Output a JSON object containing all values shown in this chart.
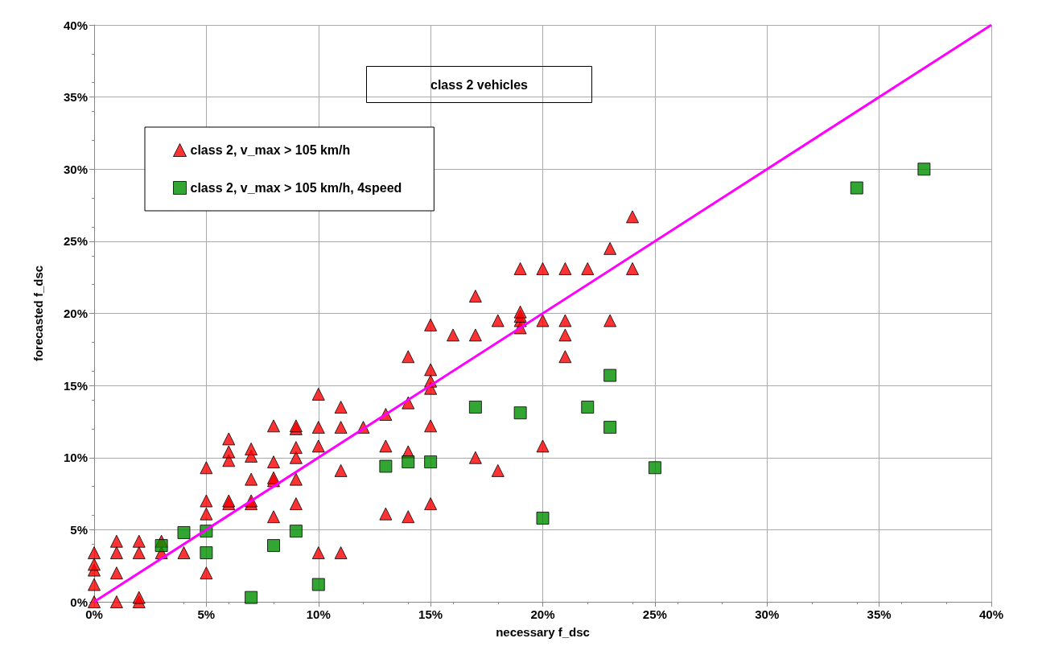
{
  "chart_data": {
    "type": "scatter",
    "title": "class 2 vehicles",
    "xlabel": "necessary f_dsc",
    "ylabel": "forecasted f_dsc",
    "xlim": [
      0,
      40
    ],
    "ylim": [
      0,
      40
    ],
    "xticks": [
      {
        "value": 0,
        "label": "0%"
      },
      {
        "value": 5,
        "label": "5%"
      },
      {
        "value": 10,
        "label": "10%"
      },
      {
        "value": 15,
        "label": "15%"
      },
      {
        "value": 20,
        "label": "20%"
      },
      {
        "value": 25,
        "label": "25%"
      },
      {
        "value": 30,
        "label": "30%"
      },
      {
        "value": 35,
        "label": "35%"
      },
      {
        "value": 40,
        "label": "40%"
      }
    ],
    "yticks": [
      {
        "value": 0,
        "label": "0%"
      },
      {
        "value": 5,
        "label": "5%"
      },
      {
        "value": 10,
        "label": "10%"
      },
      {
        "value": 15,
        "label": "15%"
      },
      {
        "value": 20,
        "label": "20%"
      },
      {
        "value": 25,
        "label": "25%"
      },
      {
        "value": 30,
        "label": "30%"
      },
      {
        "value": 35,
        "label": "35%"
      },
      {
        "value": 40,
        "label": "40%"
      }
    ],
    "grid": true,
    "legend": "top left",
    "series": [
      {
        "name": "class 2, v_max > 105 km/h",
        "color": "#ff0000",
        "marker": "triangle",
        "x": [
          0,
          0,
          0,
          0,
          0,
          1,
          1,
          1,
          1,
          2,
          2,
          2,
          2,
          3,
          3,
          4,
          5,
          5,
          5,
          5,
          6,
          6,
          6,
          6,
          6,
          7,
          7,
          7,
          7,
          7,
          8,
          8,
          8,
          8,
          8,
          9,
          9,
          9,
          9,
          9,
          9,
          10,
          10,
          10,
          10,
          11,
          11,
          11,
          11,
          12,
          13,
          13,
          13,
          14,
          14,
          14,
          14,
          15,
          15,
          15,
          15,
          15,
          15,
          16,
          17,
          17,
          17,
          18,
          18,
          19,
          19,
          19,
          19,
          19,
          20,
          20,
          20,
          21,
          21,
          21,
          21,
          22,
          23,
          23,
          24,
          24
        ],
        "values": [
          0,
          1.2,
          2.2,
          2.6,
          3.4,
          0,
          2.0,
          3.4,
          4.2,
          0,
          0.3,
          3.4,
          4.2,
          3.4,
          4.2,
          3.4,
          2.0,
          6.1,
          7.0,
          9.3,
          6.8,
          7.0,
          9.8,
          10.4,
          11.3,
          6.8,
          7.0,
          8.5,
          10.1,
          10.6,
          5.9,
          8.4,
          8.6,
          9.7,
          12.2,
          6.8,
          8.5,
          10.0,
          10.7,
          12.0,
          12.2,
          3.4,
          10.8,
          12.1,
          14.4,
          3.4,
          9.1,
          12.1,
          13.5,
          12.1,
          6.1,
          10.8,
          13.0,
          5.9,
          10.4,
          13.8,
          17.0,
          6.8,
          12.2,
          14.8,
          15.3,
          16.1,
          19.2,
          18.5,
          10.0,
          18.5,
          21.2,
          9.1,
          19.5,
          19.0,
          19.5,
          19.8,
          20.1,
          23.1,
          10.8,
          19.5,
          23.1,
          17.0,
          18.5,
          19.5,
          23.1,
          23.1,
          19.5,
          24.5,
          23.1,
          26.7
        ]
      },
      {
        "name": "class 2, v_max > 105 km/h, 4speed",
        "color": "#008f00",
        "marker": "square",
        "x": [
          3,
          4,
          5,
          5,
          7,
          8,
          9,
          10,
          13,
          14,
          15,
          17,
          19,
          20,
          22,
          23,
          23,
          25,
          34,
          37
        ],
        "values": [
          3.9,
          4.8,
          3.4,
          4.9,
          0.3,
          3.9,
          4.9,
          1.2,
          9.4,
          9.7,
          9.7,
          13.5,
          13.1,
          5.8,
          13.5,
          15.7,
          12.1,
          9.3,
          28.7,
          30.0
        ]
      },
      {
        "type": "line",
        "color": "#ff00ff",
        "marker": "none",
        "x": [
          0,
          40
        ],
        "values": [
          0,
          40
        ]
      }
    ]
  }
}
